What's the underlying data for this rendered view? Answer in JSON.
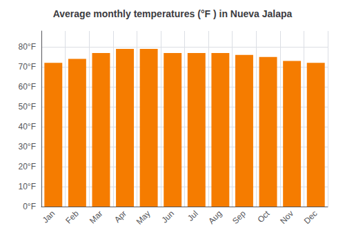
{
  "chart_data": {
    "type": "bar",
    "title": "Average monthly temperatures (°F ) in Nueva Jalapa",
    "categories": [
      "Jan",
      "Feb",
      "Mar",
      "Apr",
      "May",
      "Jun",
      "Jul",
      "Aug",
      "Sep",
      "Oct",
      "Nov",
      "Dec"
    ],
    "values": [
      72,
      74,
      77,
      79,
      79,
      77,
      77,
      77,
      76,
      75,
      73,
      72
    ],
    "color": "#F57C00",
    "ylim": [
      0,
      88
    ],
    "yticks": [
      {
        "value": 0,
        "label": "0°F"
      },
      {
        "value": 10,
        "label": "10°F"
      },
      {
        "value": 20,
        "label": "20°F"
      },
      {
        "value": 30,
        "label": "30°F"
      },
      {
        "value": 40,
        "label": "40°F"
      },
      {
        "value": 50,
        "label": "50°F"
      },
      {
        "value": 60,
        "label": "60°F"
      },
      {
        "value": 70,
        "label": "70°F"
      },
      {
        "value": 80,
        "label": "80°F"
      }
    ],
    "grid": true
  }
}
